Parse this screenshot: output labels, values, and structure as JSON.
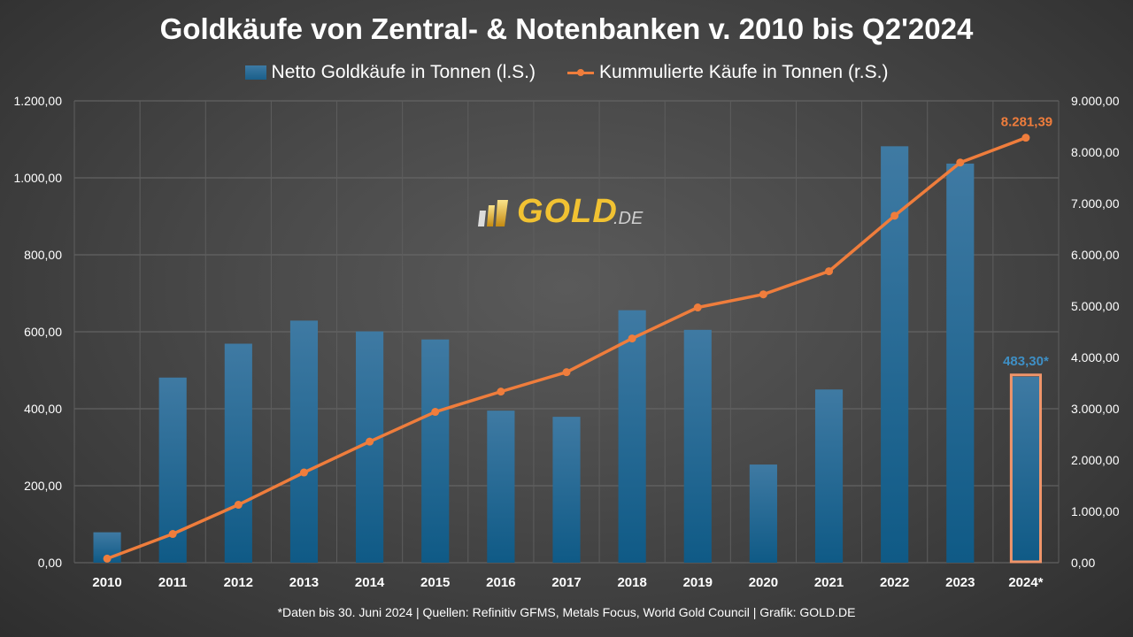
{
  "title": "Goldkäufe von Zentral- & Notenbanken v. 2010 bis Q2'2024",
  "legend": {
    "bar_label": "Netto Goldkäufe in Tonnen (l.S.)",
    "line_label": "Kummulierte Käufe in Tonnen (r.S.)"
  },
  "footnote": "*Daten bis 30. Juni 2024 | Quellen: Refinitiv GFMS, Metals Focus, World Gold Council | Grafik: GOLD.DE",
  "logo": {
    "text": "GOLD",
    "suffix": ".DE"
  },
  "colors": {
    "bar": "#1a6391",
    "line": "#ef7d3c",
    "highlight": "#f0956a",
    "bar_label": "#3e8fc5"
  },
  "chart_data": {
    "type": "bar",
    "categories": [
      "2010",
      "2011",
      "2012",
      "2013",
      "2014",
      "2015",
      "2016",
      "2017",
      "2018",
      "2019",
      "2020",
      "2021",
      "2022",
      "2023",
      "2024*"
    ],
    "series": [
      {
        "name": "Netto Goldkäufe in Tonnen (l.S.)",
        "axis": "left",
        "type": "bar",
        "values": [
          79,
          481,
          569,
          629,
          601,
          580,
          395,
          379,
          656,
          605,
          255,
          450,
          1082,
          1037,
          483.3
        ]
      },
      {
        "name": "Kummulierte Käufe in Tonnen (r.S.)",
        "axis": "right",
        "type": "line",
        "values": [
          79,
          560,
          1129,
          1758,
          2359,
          2939,
          3334,
          3713,
          4369,
          4974,
          5229,
          5679,
          6761,
          7798,
          8281.39
        ]
      }
    ],
    "y_left": {
      "min": 0,
      "max": 1200,
      "ticks": [
        "0,00",
        "200,00",
        "400,00",
        "600,00",
        "800,00",
        "1.000,00",
        "1.200,00"
      ]
    },
    "y_right": {
      "min": 0,
      "max": 9000,
      "ticks": [
        "0,00",
        "1.000,00",
        "2.000,00",
        "3.000,00",
        "4.000,00",
        "5.000,00",
        "6.000,00",
        "7.000,00",
        "8.000,00",
        "9.000,00"
      ]
    },
    "annotations": [
      {
        "series": "bar",
        "category": "2024*",
        "text": "483,30*"
      },
      {
        "series": "line",
        "category": "2024*",
        "text": "8.281,39"
      }
    ],
    "grid": true,
    "legend_position": "top"
  }
}
